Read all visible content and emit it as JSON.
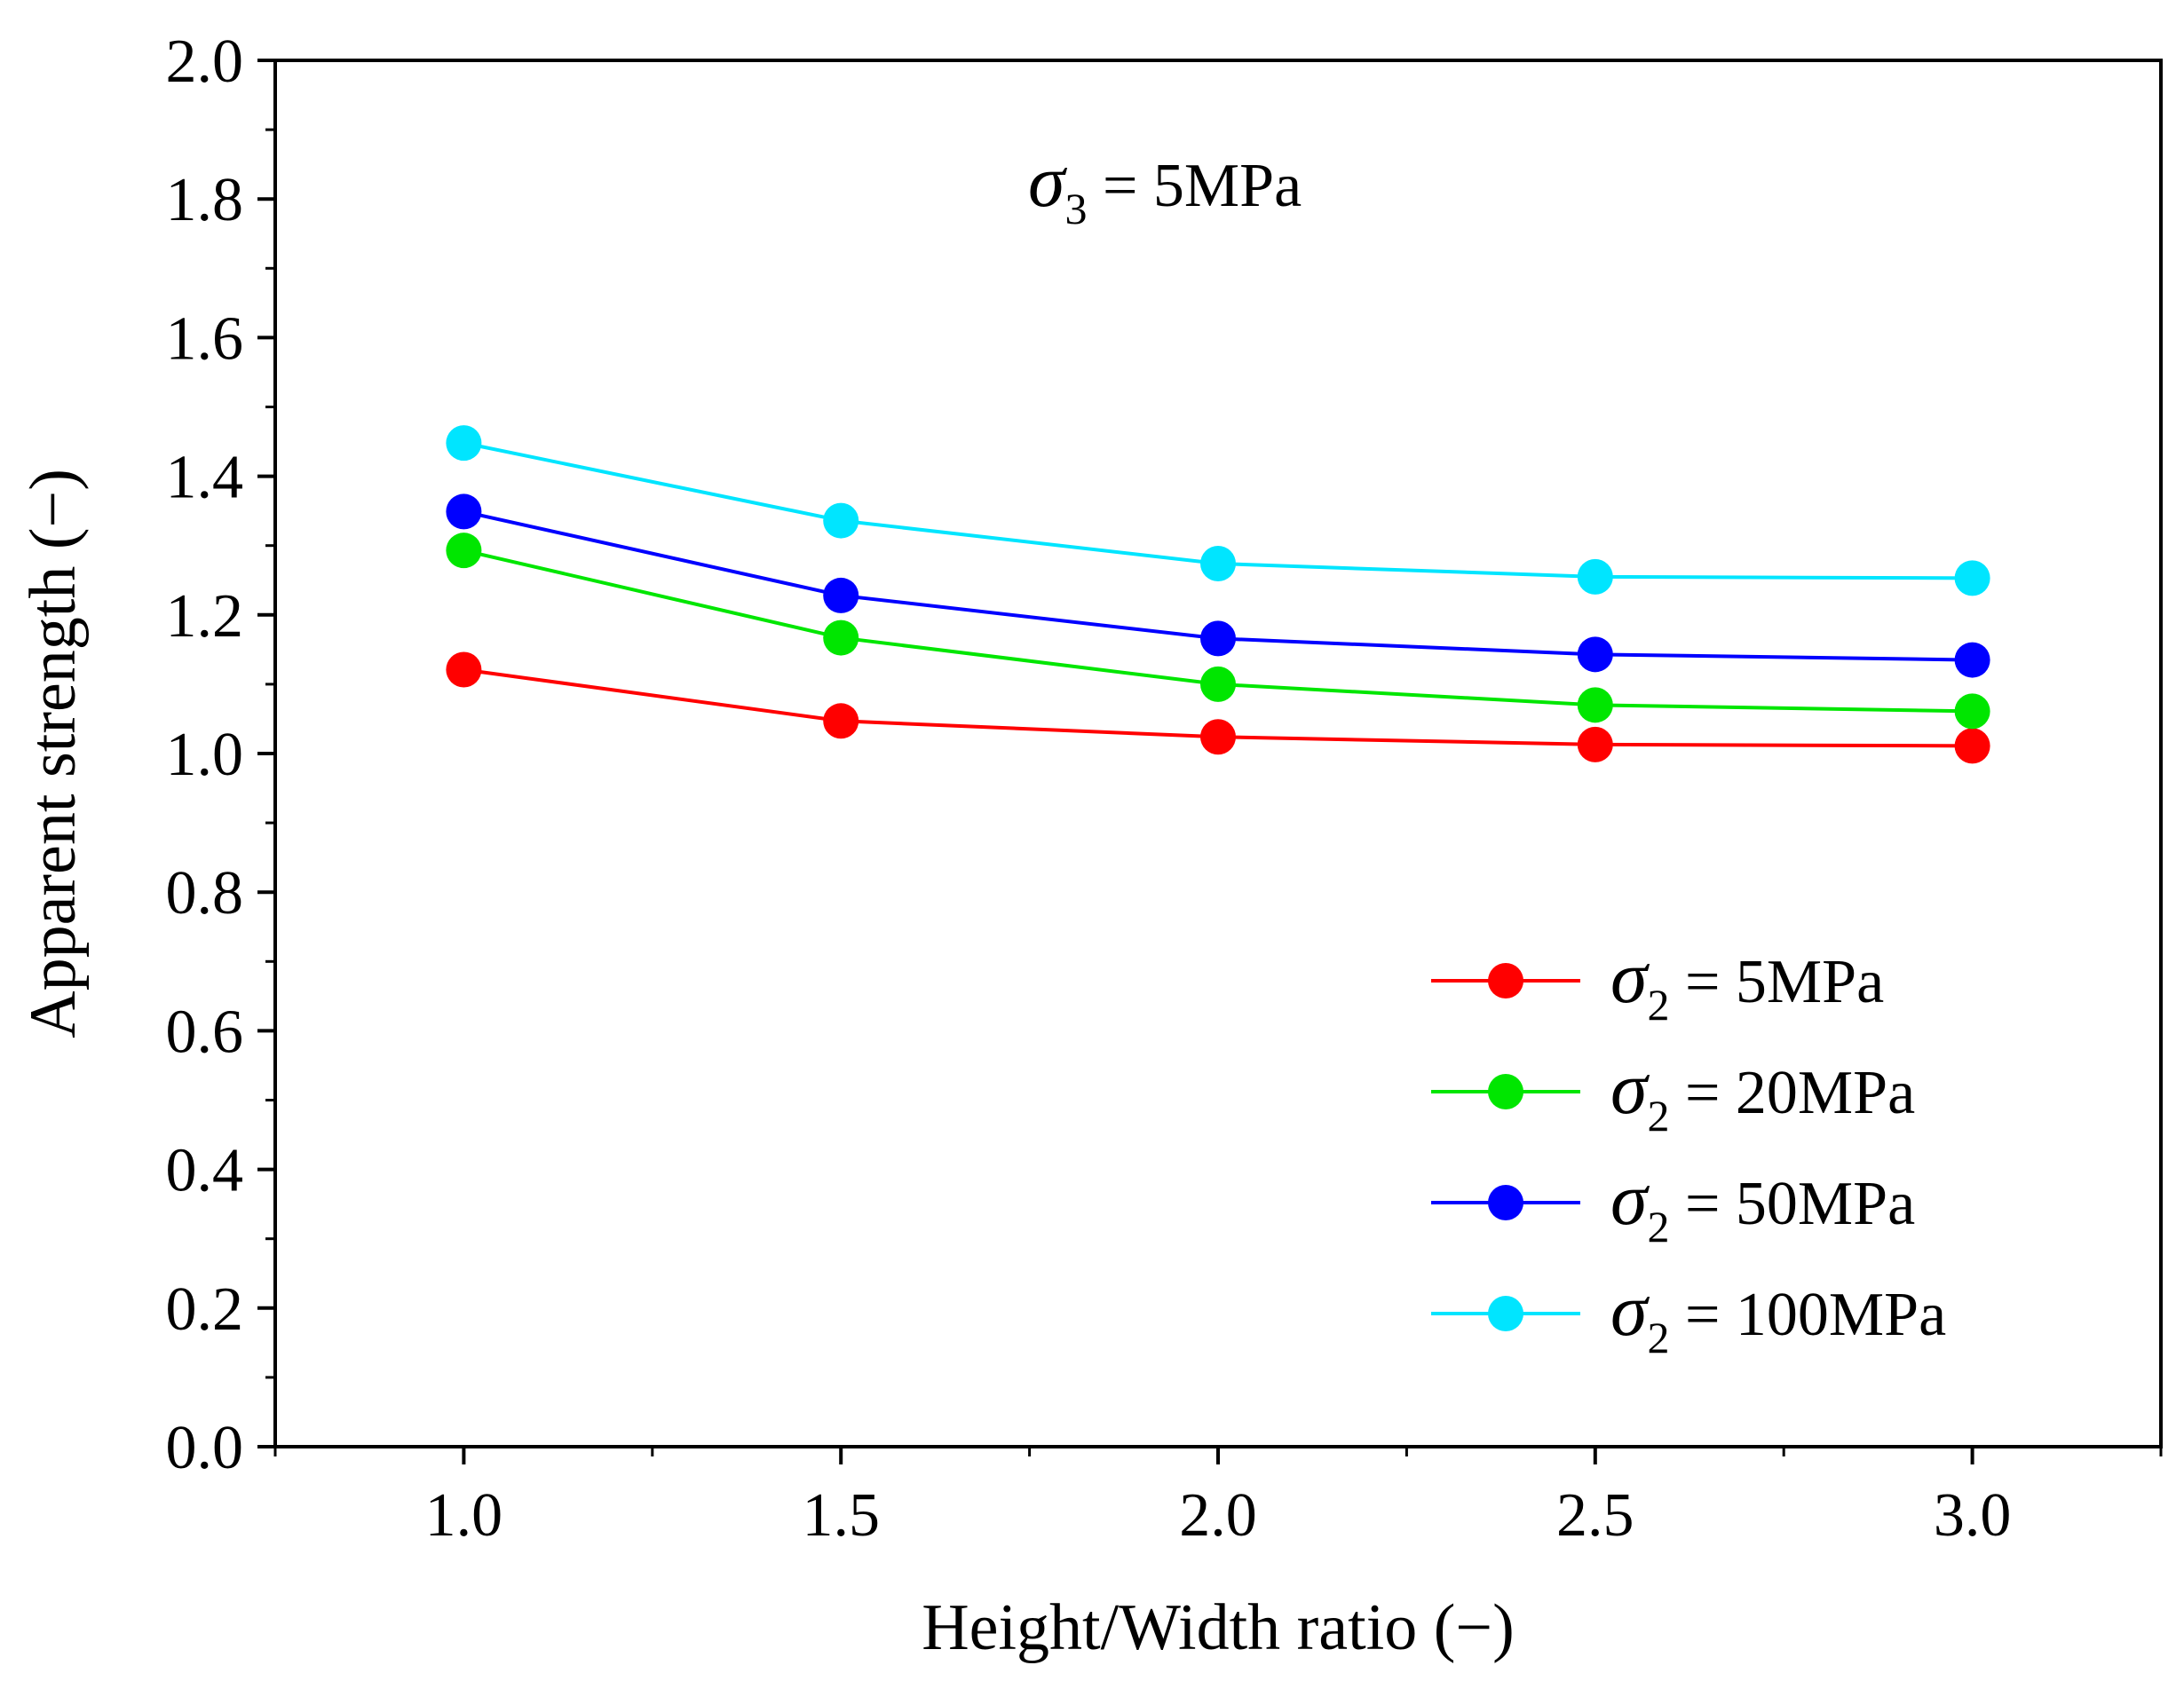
{
  "chart_data": {
    "type": "line",
    "xlabel": "Height/Width ratio (−)",
    "ylabel": "Apparent strength (−)",
    "xlim": [
      0.75,
      3.25
    ],
    "ylim": [
      0.0,
      2.0
    ],
    "x_ticks": [
      "1.0",
      "1.5",
      "2.0",
      "2.5",
      "3.0"
    ],
    "y_ticks": [
      "0.0",
      "0.2",
      "0.4",
      "0.6",
      "0.8",
      "1.0",
      "1.2",
      "1.4",
      "1.6",
      "1.8",
      "2.0"
    ],
    "x": [
      1.0,
      1.5,
      2.0,
      2.5,
      3.0
    ],
    "annotation": {
      "symbol": "σ",
      "subscript": "3",
      "text": " = 5MPa"
    },
    "series": [
      {
        "name": "5MPa",
        "symbol": "σ",
        "subscript": "2",
        "text": " = 5MPa",
        "color": "#ff0000",
        "values": [
          1.121,
          1.047,
          1.024,
          1.013,
          1.011
        ]
      },
      {
        "name": "20MPa",
        "symbol": "σ",
        "subscript": "2",
        "text": " = 20MPa",
        "color": "#00e600",
        "values": [
          1.293,
          1.167,
          1.1,
          1.07,
          1.061
        ]
      },
      {
        "name": "50MPa",
        "symbol": "σ",
        "subscript": "2",
        "text": " = 50MPa",
        "color": "#0000ff",
        "values": [
          1.349,
          1.228,
          1.166,
          1.143,
          1.135
        ]
      },
      {
        "name": "100MPa",
        "symbol": "σ",
        "subscript": "2",
        "text": " = 100MPa",
        "color": "#00e5ff",
        "values": [
          1.448,
          1.336,
          1.274,
          1.255,
          1.253
        ]
      }
    ]
  }
}
